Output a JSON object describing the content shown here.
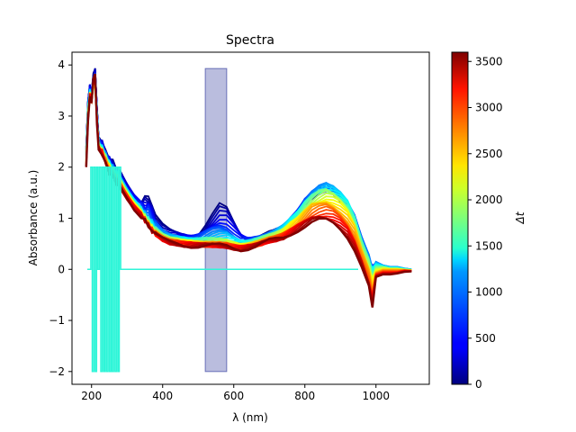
{
  "chart_data": {
    "type": "line",
    "title": "Spectra",
    "xlabel": "λ (nm)",
    "ylabel": "Absorbance (a.u.)",
    "xlim": [
      145,
      1150
    ],
    "ylim": [
      -2.25,
      4.25
    ],
    "xticks": [
      200,
      400,
      600,
      800,
      1000
    ],
    "yticks": [
      -2,
      -1,
      0,
      1,
      2,
      3,
      4
    ],
    "grid": false,
    "highlight_band": {
      "x": [
        520,
        580
      ],
      "y": [
        -2,
        3.93
      ],
      "color": "#8c91c8"
    },
    "colorbar": {
      "label": "Δt",
      "colormap": "jet",
      "range": [
        0,
        3600
      ],
      "ticks": [
        0,
        500,
        1000,
        1500,
        2000,
        2500,
        3000,
        3500
      ]
    },
    "artifact_series": {
      "color": "#2ff5d8",
      "x": [
        188,
        198,
        198,
        202,
        202,
        206,
        206,
        210,
        210,
        214,
        214,
        218,
        218,
        222,
        222,
        226,
        226,
        230,
        230,
        234,
        234,
        238,
        238,
        242,
        242,
        246,
        246,
        250,
        250,
        254,
        254,
        258,
        258,
        262,
        262,
        266,
        266,
        270,
        270,
        274,
        274,
        278,
        278,
        282,
        282,
        286,
        286,
        950
      ],
      "y": [
        0,
        0,
        2,
        2,
        -2,
        -2,
        2,
        2,
        -2,
        -2,
        2,
        2,
        0,
        0,
        2,
        2,
        -2,
        -2,
        2,
        2,
        -2,
        -2,
        2,
        2,
        -2,
        -2,
        2,
        2,
        -2,
        -2,
        2,
        2,
        -2,
        -2,
        2,
        2,
        -2,
        -2,
        2,
        2,
        -2,
        -2,
        2,
        2,
        0,
        0,
        0,
        0
      ]
    },
    "spectrum_x": [
      185,
      190,
      195,
      200,
      205,
      210,
      215,
      220,
      230,
      240,
      250,
      260,
      270,
      280,
      300,
      320,
      340,
      350,
      360,
      370,
      380,
      400,
      420,
      440,
      460,
      480,
      500,
      520,
      540,
      560,
      580,
      600,
      620,
      640,
      660,
      680,
      700,
      720,
      740,
      760,
      780,
      800,
      820,
      840,
      860,
      880,
      900,
      920,
      940,
      960,
      980,
      990,
      1000,
      1020,
      1040,
      1060,
      1080,
      1100
    ],
    "series": [
      {
        "delta_t": 0,
        "y": [
          2.4,
          3.3,
          3.6,
          3.5,
          3.8,
          3.9,
          3.2,
          2.6,
          2.5,
          2.3,
          2.2,
          2.1,
          2.0,
          1.9,
          1.65,
          1.45,
          1.35,
          1.4,
          1.45,
          1.25,
          1.05,
          0.85,
          0.75,
          0.7,
          0.66,
          0.64,
          0.7,
          0.85,
          1.05,
          1.25,
          1.2,
          0.95,
          0.7,
          0.6,
          0.62,
          0.65,
          0.7,
          0.75,
          0.8,
          0.95,
          1.1,
          1.3,
          1.4,
          1.45,
          1.5,
          1.45,
          1.35,
          1.2,
          0.95,
          0.55,
          0.2,
          0.0,
          0.1,
          0.05,
          0.0,
          0.02,
          0.0,
          -0.02
        ]
      },
      {
        "delta_t": 900,
        "y": [
          2.3,
          3.2,
          3.5,
          3.4,
          3.7,
          3.8,
          3.1,
          2.5,
          2.4,
          2.25,
          2.1,
          2.0,
          1.9,
          1.8,
          1.55,
          1.35,
          1.2,
          1.1,
          1.05,
          0.95,
          0.85,
          0.72,
          0.65,
          0.62,
          0.6,
          0.58,
          0.6,
          0.65,
          0.7,
          0.72,
          0.7,
          0.62,
          0.55,
          0.55,
          0.58,
          0.62,
          0.68,
          0.75,
          0.85,
          1.0,
          1.15,
          1.35,
          1.5,
          1.6,
          1.65,
          1.6,
          1.5,
          1.35,
          1.05,
          0.6,
          0.25,
          0.05,
          0.15,
          0.08,
          0.05,
          0.05,
          0.02,
          0.0
        ]
      },
      {
        "delta_t": 1700,
        "y": [
          2.2,
          3.1,
          3.45,
          3.3,
          3.6,
          3.7,
          3.0,
          2.45,
          2.35,
          2.2,
          2.05,
          1.95,
          1.85,
          1.75,
          1.5,
          1.3,
          1.15,
          1.05,
          0.95,
          0.85,
          0.77,
          0.66,
          0.6,
          0.58,
          0.56,
          0.55,
          0.55,
          0.56,
          0.57,
          0.57,
          0.56,
          0.52,
          0.48,
          0.5,
          0.55,
          0.6,
          0.65,
          0.7,
          0.78,
          0.92,
          1.05,
          1.25,
          1.4,
          1.5,
          1.55,
          1.5,
          1.4,
          1.25,
          0.95,
          0.5,
          0.15,
          -0.1,
          0.05,
          0.05,
          0.02,
          0.02,
          0.0,
          -0.01
        ]
      },
      {
        "delta_t": 2400,
        "y": [
          2.1,
          3.0,
          3.4,
          3.3,
          3.6,
          3.6,
          2.95,
          2.4,
          2.3,
          2.15,
          2.0,
          1.9,
          1.8,
          1.7,
          1.45,
          1.25,
          1.1,
          1.0,
          0.9,
          0.8,
          0.72,
          0.62,
          0.56,
          0.54,
          0.52,
          0.51,
          0.5,
          0.5,
          0.5,
          0.5,
          0.49,
          0.46,
          0.44,
          0.46,
          0.5,
          0.55,
          0.6,
          0.65,
          0.72,
          0.85,
          0.95,
          1.1,
          1.25,
          1.3,
          1.35,
          1.3,
          1.2,
          1.05,
          0.8,
          0.35,
          0.0,
          -0.3,
          -0.05,
          0.0,
          0.0,
          0.0,
          -0.01,
          -0.02
        ]
      },
      {
        "delta_t": 3000,
        "y": [
          2.05,
          2.95,
          3.4,
          3.3,
          3.65,
          3.7,
          2.95,
          2.4,
          2.3,
          2.1,
          1.95,
          1.85,
          1.75,
          1.65,
          1.42,
          1.22,
          1.07,
          0.97,
          0.87,
          0.77,
          0.7,
          0.6,
          0.54,
          0.52,
          0.5,
          0.49,
          0.48,
          0.48,
          0.48,
          0.48,
          0.47,
          0.44,
          0.42,
          0.44,
          0.47,
          0.52,
          0.57,
          0.6,
          0.66,
          0.75,
          0.85,
          0.95,
          1.05,
          1.1,
          1.1,
          1.05,
          0.95,
          0.8,
          0.55,
          0.2,
          -0.2,
          -0.55,
          -0.1,
          -0.05,
          -0.05,
          -0.05,
          -0.02,
          -0.03
        ]
      },
      {
        "delta_t": 3600,
        "y": [
          2.0,
          2.9,
          3.4,
          3.3,
          3.7,
          3.8,
          2.9,
          2.35,
          2.25,
          2.05,
          1.9,
          1.8,
          1.7,
          1.6,
          1.4,
          1.2,
          1.05,
          0.95,
          0.85,
          0.75,
          0.68,
          0.58,
          0.52,
          0.5,
          0.48,
          0.47,
          0.46,
          0.46,
          0.46,
          0.46,
          0.45,
          0.42,
          0.4,
          0.42,
          0.45,
          0.5,
          0.55,
          0.58,
          0.62,
          0.7,
          0.78,
          0.85,
          0.92,
          0.95,
          0.95,
          0.9,
          0.8,
          0.65,
          0.4,
          0.05,
          -0.35,
          -0.7,
          -0.15,
          -0.1,
          -0.1,
          -0.08,
          -0.05,
          -0.04
        ]
      }
    ]
  }
}
